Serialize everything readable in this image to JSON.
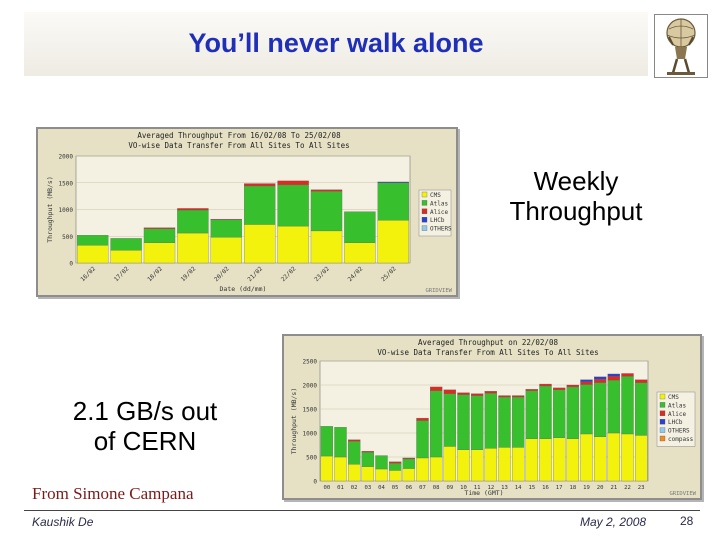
{
  "slide": {
    "title": "You’ll never walk alone",
    "weekly_label_line1": "Weekly",
    "weekly_label_line2": "Throughput",
    "cern_label_line1": "2.1 GB/s out",
    "cern_label_line2": "of CERN",
    "source": "From Simone Campana",
    "author": "Kaushik De",
    "date": "May 2, 2008",
    "page": "28"
  },
  "chart_data": [
    {
      "type": "bar",
      "stacked": true,
      "title": "Averaged Throughput From 16/02/08 To 25/02/08",
      "subtitle": "VO-wise Data Transfer From All Sites To All Sites",
      "xlabel": "Date (dd/mm)",
      "ylabel": "Throughput (MB/s)",
      "ylim": [
        0,
        2000
      ],
      "yticks": [
        0,
        500,
        1000,
        1500,
        2000
      ],
      "grid": true,
      "legend_position": "right",
      "watermark": "GRIDVIEW",
      "categories": [
        "16/02",
        "17/02",
        "18/02",
        "19/02",
        "20/02",
        "21/02",
        "22/02",
        "23/02",
        "24/02",
        "25/02"
      ],
      "colors": {
        "Alice": "#dd2a22",
        "Atlas": "#37bf2d",
        "CMS": "#f2f20c",
        "LHCb": "#2b3fd1",
        "OTHERS": "#8ec9f0"
      },
      "series": [
        {
          "name": "CMS",
          "values": [
            330,
            240,
            380,
            560,
            480,
            720,
            690,
            600,
            380,
            800
          ]
        },
        {
          "name": "Atlas",
          "values": [
            190,
            220,
            260,
            430,
            330,
            720,
            770,
            740,
            580,
            700
          ]
        },
        {
          "name": "Alice",
          "values": [
            0,
            0,
            20,
            30,
            10,
            45,
            75,
            30,
            0,
            0
          ]
        },
        {
          "name": "LHCb",
          "values": [
            0,
            0,
            0,
            0,
            0,
            0,
            0,
            0,
            0,
            15
          ]
        },
        {
          "name": "OTHERS",
          "values": [
            0,
            0,
            0,
            0,
            0,
            0,
            0,
            0,
            0,
            0
          ]
        }
      ]
    },
    {
      "type": "bar",
      "stacked": true,
      "title": "Averaged Throughput on 22/02/08",
      "subtitle": "VO-wise Data Transfer From All Sites To All Sites",
      "xlabel": "Time (GMT)",
      "ylabel": "Throughput (MB/s)",
      "ylim": [
        0,
        2500
      ],
      "yticks": [
        0,
        500,
        1000,
        1500,
        2000,
        2500
      ],
      "grid": true,
      "legend_position": "right",
      "watermark": "GRIDVIEW",
      "categories": [
        "00",
        "01",
        "02",
        "03",
        "04",
        "05",
        "06",
        "07",
        "08",
        "09",
        "10",
        "11",
        "12",
        "13",
        "14",
        "15",
        "16",
        "17",
        "18",
        "19",
        "20",
        "21",
        "22",
        "23"
      ],
      "colors": {
        "Alice": "#dd2a22",
        "Atlas": "#37bf2d",
        "CMS": "#f2f20c",
        "LHCb": "#2b3fd1",
        "OTHERS": "#8ec9f0",
        "compass": "#f08a24"
      },
      "series": [
        {
          "name": "CMS",
          "values": [
            520,
            500,
            350,
            300,
            250,
            220,
            260,
            480,
            500,
            720,
            650,
            650,
            680,
            700,
            700,
            880,
            880,
            900,
            880,
            980,
            920,
            1000,
            980,
            950
          ]
        },
        {
          "name": "Atlas",
          "values": [
            620,
            620,
            480,
            300,
            280,
            150,
            200,
            780,
            1380,
            1100,
            1150,
            1130,
            1150,
            1050,
            1050,
            1000,
            1100,
            1000,
            1080,
            1030,
            1130,
            1100,
            1200,
            1100
          ]
        },
        {
          "name": "Alice",
          "values": [
            0,
            0,
            30,
            20,
            0,
            30,
            20,
            50,
            80,
            80,
            40,
            40,
            40,
            30,
            30,
            30,
            40,
            40,
            40,
            60,
            70,
            80,
            60,
            60
          ]
        },
        {
          "name": "LHCb",
          "values": [
            0,
            0,
            0,
            0,
            0,
            0,
            0,
            0,
            0,
            0,
            0,
            0,
            0,
            0,
            0,
            0,
            0,
            0,
            0,
            40,
            50,
            50,
            0,
            0
          ]
        },
        {
          "name": "OTHERS",
          "values": [
            0,
            0,
            0,
            0,
            0,
            0,
            0,
            0,
            0,
            0,
            0,
            0,
            0,
            0,
            0,
            0,
            0,
            0,
            0,
            0,
            0,
            0,
            0,
            0
          ]
        },
        {
          "name": "compass",
          "values": [
            0,
            0,
            0,
            0,
            0,
            0,
            0,
            0,
            0,
            0,
            0,
            0,
            0,
            0,
            0,
            0,
            0,
            0,
            0,
            0,
            0,
            0,
            0,
            0
          ]
        }
      ]
    }
  ]
}
